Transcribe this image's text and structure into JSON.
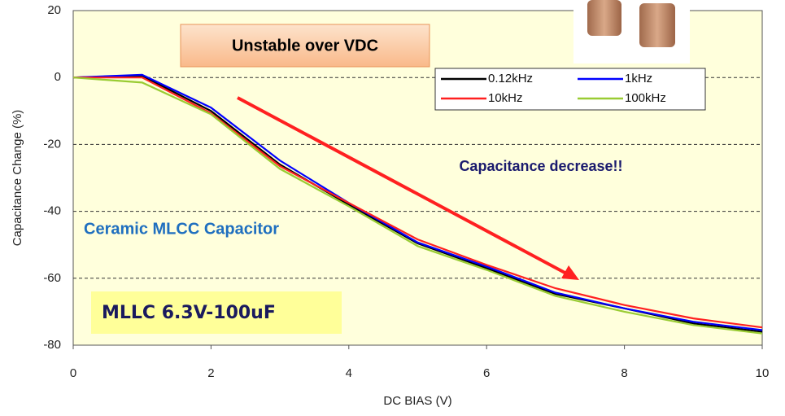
{
  "chart_data": {
    "type": "line",
    "x_label": "DC BIAS (V)",
    "y_label": "Capacitance Change (%)",
    "x": [
      0,
      1,
      2,
      3,
      4,
      5,
      6,
      7,
      8,
      9,
      10
    ],
    "series": [
      {
        "name": "0.12kHz",
        "color": "#000000",
        "values": [
          0,
          0.5,
          -10,
          -26,
          -38,
          -49.6,
          -57,
          -64.7,
          -69,
          -73.5,
          -76
        ]
      },
      {
        "name": "1kHz",
        "color": "#0000ff",
        "values": [
          0,
          0.8,
          -9,
          -24.8,
          -37.5,
          -49.3,
          -56.5,
          -64.3,
          -69,
          -73,
          -75.5
        ]
      },
      {
        "name": "10kHz",
        "color": "#ff2020",
        "values": [
          0,
          0,
          -10.7,
          -26.5,
          -37.5,
          -48.4,
          -56,
          -63,
          -68,
          -72,
          -74.7
        ]
      },
      {
        "name": "100kHz",
        "color": "#99cc33",
        "values": [
          0,
          -1.5,
          -11,
          -27.3,
          -38.5,
          -50.4,
          -57.5,
          -65.3,
          -70,
          -74,
          -76.5
        ]
      }
    ],
    "xlim": [
      0,
      10
    ],
    "xticks": [
      0,
      2,
      4,
      6,
      8,
      10
    ],
    "ylim": [
      -80,
      20
    ],
    "yticks": [
      -80,
      -60,
      -40,
      -20,
      0,
      20
    ],
    "grid": true,
    "legend": "upper-right",
    "annotations": [
      "Unstable over VDC",
      "Capacitance decrease!!",
      "Ceramic MLCC Capacitor",
      "MLLC 6.3V-100uF"
    ]
  }
}
